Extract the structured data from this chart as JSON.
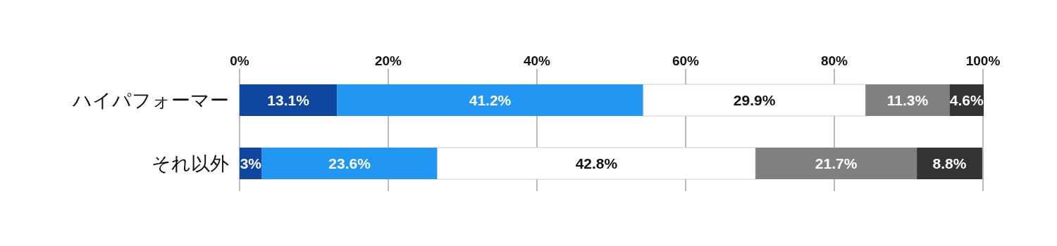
{
  "chart_data": {
    "type": "bar",
    "orientation": "horizontal",
    "stacked": true,
    "grid": "x",
    "categories": [
      "ハイパフォーマー",
      "それ以外"
    ],
    "xlim": [
      0,
      100
    ],
    "xticks": [
      {
        "value": 0,
        "label": "0%"
      },
      {
        "value": 20,
        "label": "20%"
      },
      {
        "value": 40,
        "label": "40%"
      },
      {
        "value": 60,
        "label": "60%"
      },
      {
        "value": 80,
        "label": "80%"
      },
      {
        "value": 100,
        "label": "100%"
      }
    ],
    "series": [
      {
        "color": "#0f46a0",
        "values": [
          13.1,
          3
        ],
        "value_labels": [
          "13.1%",
          "3%"
        ]
      },
      {
        "color": "#2196f3",
        "values": [
          41.2,
          23.6
        ],
        "value_labels": [
          "41.2%",
          "23.6%"
        ]
      },
      {
        "color": "#ffffff",
        "values": [
          29.9,
          42.8
        ],
        "value_labels": [
          "29.9%",
          "42.8%"
        ]
      },
      {
        "color": "#808080",
        "values": [
          11.3,
          21.7
        ],
        "value_labels": [
          "11.3%",
          "21.7%"
        ]
      },
      {
        "color": "#333333",
        "values": [
          4.6,
          8.8
        ],
        "value_labels": [
          "4.6%",
          "8.8%"
        ]
      }
    ]
  }
}
